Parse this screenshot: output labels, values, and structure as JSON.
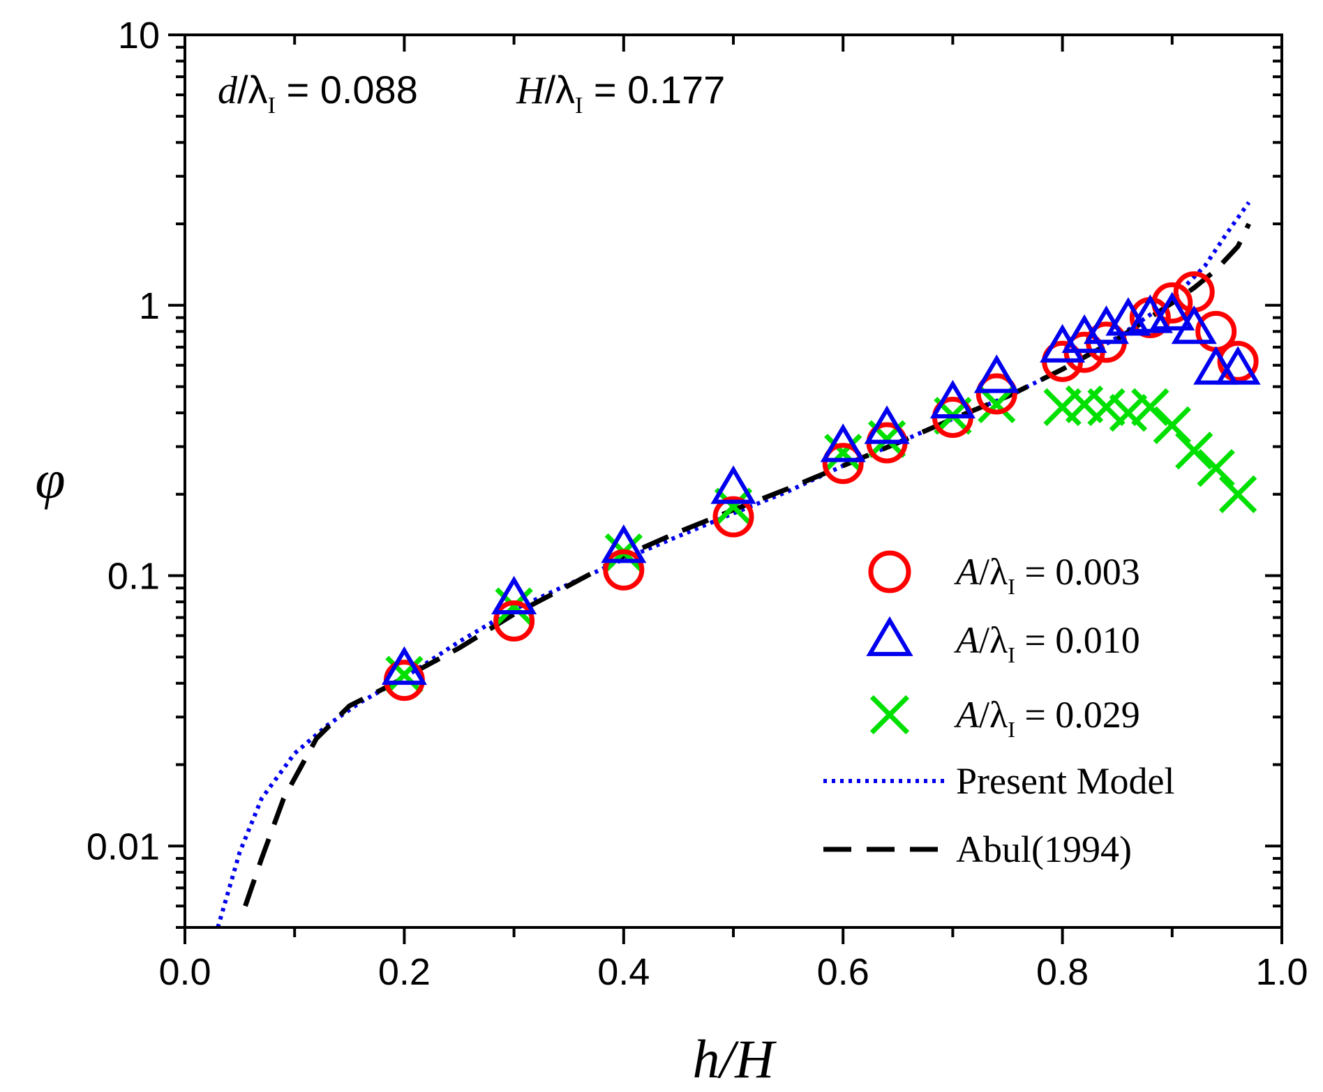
{
  "chart_data": {
    "type": "scatter",
    "title": "",
    "xlabel": "h/H",
    "ylabel": "φ",
    "xlim": [
      0.0,
      1.0
    ],
    "ylim": [
      0.005,
      10
    ],
    "yscale": "log",
    "x_ticks": [
      "0.0",
      "0.2",
      "0.4",
      "0.6",
      "0.8",
      "1.0"
    ],
    "y_ticks": [
      "0.01",
      "0.1",
      "1",
      "10"
    ],
    "annotation": {
      "d_sym": "d",
      "sep": "/λ",
      "sub": "I",
      "d_val": " = 0.088",
      "H_sym": "H",
      "H_val": " = 0.177"
    },
    "series": [
      {
        "name": "A/λI = 0.003",
        "marker": "circle",
        "color": "#ff0000",
        "label_sym": "A",
        "label_sep": "/λ",
        "label_sub": "I",
        "label_val": " = 0.003",
        "x": [
          0.2,
          0.3,
          0.4,
          0.5,
          0.6,
          0.64,
          0.7,
          0.74,
          0.8,
          0.82,
          0.84,
          0.88,
          0.9,
          0.92,
          0.94,
          0.96
        ],
        "y": [
          0.041,
          0.068,
          0.105,
          0.165,
          0.26,
          0.31,
          0.385,
          0.47,
          0.62,
          0.67,
          0.73,
          0.9,
          1.02,
          1.12,
          0.8,
          0.62
        ]
      },
      {
        "name": "A/λI = 0.010",
        "marker": "triangle",
        "color": "#0000ee",
        "label_sym": "A",
        "label_sep": "/λ",
        "label_sub": "I",
        "label_val": " = 0.010",
        "x": [
          0.2,
          0.3,
          0.4,
          0.5,
          0.6,
          0.64,
          0.7,
          0.74,
          0.8,
          0.82,
          0.84,
          0.86,
          0.88,
          0.9,
          0.92,
          0.94,
          0.96
        ],
        "y": [
          0.045,
          0.082,
          0.127,
          0.21,
          0.3,
          0.35,
          0.435,
          0.54,
          0.7,
          0.76,
          0.82,
          0.88,
          0.9,
          0.92,
          0.82,
          0.58,
          0.58
        ]
      },
      {
        "name": "A/λI = 0.029",
        "marker": "cross",
        "color": "#00e000",
        "label_sym": "A",
        "label_sep": "/λ",
        "label_sub": "I",
        "label_val": " = 0.029",
        "x": [
          0.2,
          0.3,
          0.4,
          0.5,
          0.6,
          0.64,
          0.7,
          0.74,
          0.8,
          0.82,
          0.84,
          0.86,
          0.88,
          0.9,
          0.92,
          0.94,
          0.96
        ],
        "y": [
          0.043,
          0.077,
          0.122,
          0.18,
          0.285,
          0.32,
          0.39,
          0.43,
          0.42,
          0.43,
          0.42,
          0.4,
          0.42,
          0.36,
          0.29,
          0.25,
          0.2
        ]
      },
      {
        "name": "Present Model",
        "marker": "line-dotted",
        "color": "#0000ee",
        "x": [
          0.03,
          0.05,
          0.07,
          0.1,
          0.13,
          0.16,
          0.2,
          0.25,
          0.3,
          0.35,
          0.4,
          0.45,
          0.5,
          0.55,
          0.6,
          0.65,
          0.7,
          0.75,
          0.8,
          0.85,
          0.9,
          0.93,
          0.95,
          0.97
        ],
        "y": [
          0.005,
          0.0095,
          0.015,
          0.022,
          0.028,
          0.034,
          0.042,
          0.057,
          0.075,
          0.093,
          0.115,
          0.14,
          0.17,
          0.205,
          0.255,
          0.31,
          0.38,
          0.46,
          0.58,
          0.76,
          1.05,
          1.4,
          1.85,
          2.4
        ]
      },
      {
        "name": "Abul(1994)",
        "marker": "line-dashed",
        "color": "#000000",
        "x": [
          0.055,
          0.07,
          0.09,
          0.12,
          0.15,
          0.18,
          0.2,
          0.25,
          0.3,
          0.35,
          0.4,
          0.45,
          0.5,
          0.55,
          0.6,
          0.65,
          0.7,
          0.75,
          0.8,
          0.85,
          0.9,
          0.92,
          0.94,
          0.96,
          0.97
        ],
        "y": [
          0.006,
          0.009,
          0.015,
          0.025,
          0.033,
          0.038,
          0.042,
          0.054,
          0.072,
          0.092,
          0.118,
          0.145,
          0.175,
          0.21,
          0.255,
          0.31,
          0.38,
          0.46,
          0.58,
          0.75,
          1.02,
          1.16,
          1.35,
          1.65,
          2.0
        ]
      }
    ]
  }
}
